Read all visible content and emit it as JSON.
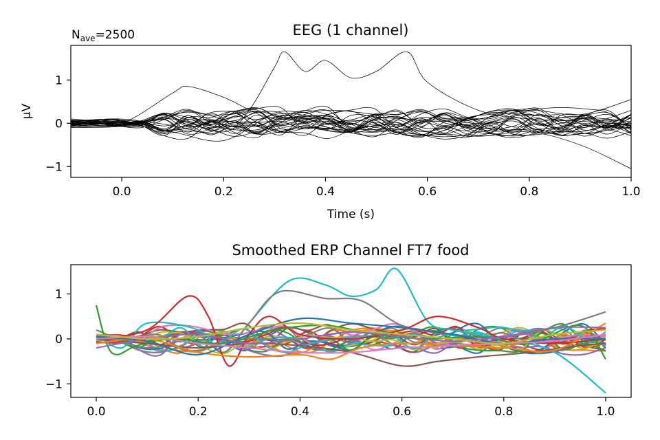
{
  "chart_data": [
    {
      "type": "line",
      "title": "EEG (1 channel)",
      "annotation": {
        "prefix": "N",
        "subscript": "ave",
        "suffix": "=2500"
      },
      "xlabel": "Time (s)",
      "ylabel": "µV",
      "xlim": [
        -0.1,
        1.0
      ],
      "ylim": [
        -1.25,
        1.8
      ],
      "xticks": [
        0.0,
        0.2,
        0.4,
        0.6,
        0.8,
        1.0
      ],
      "xtick_labels": [
        "0.0",
        "0.2",
        "0.4",
        "0.6",
        "0.8",
        "1.0"
      ],
      "yticks": [
        1,
        0,
        -1
      ],
      "ytick_labels": [
        "1",
        "0",
        "−1"
      ],
      "trace_color": "#000000",
      "trace_count": 30,
      "series": [
        {
          "x": [
            -0.1,
            0.0,
            0.1,
            0.2,
            0.25,
            0.3,
            0.32,
            0.36,
            0.4,
            0.45,
            0.5,
            0.56,
            0.6,
            0.7,
            0.8,
            0.9,
            1.0
          ],
          "values": [
            0.05,
            0.0,
            0.1,
            -0.2,
            0.3,
            1.3,
            1.65,
            1.2,
            1.45,
            1.05,
            1.2,
            1.65,
            0.95,
            0.3,
            0.1,
            0.05,
            -0.05
          ]
        },
        {
          "x": [
            -0.1,
            0.0,
            0.1,
            0.13,
            0.2,
            0.3,
            0.4,
            0.5,
            0.6,
            0.7,
            0.8,
            0.9,
            1.0
          ],
          "values": [
            -0.1,
            0.0,
            0.7,
            0.85,
            0.6,
            0.1,
            0.3,
            0.2,
            0.05,
            0.1,
            0.3,
            0.2,
            0.55
          ]
        },
        {
          "x": [
            -0.1,
            0.0,
            0.1,
            0.2,
            0.3,
            0.4,
            0.5,
            0.6,
            0.7,
            0.8,
            0.9,
            1.0
          ],
          "values": [
            0.1,
            0.0,
            -0.2,
            -0.4,
            0.2,
            0.1,
            -0.1,
            -0.2,
            -0.3,
            -0.2,
            -0.5,
            -1.05
          ]
        }
      ]
    },
    {
      "type": "line",
      "title": "Smoothed ERP Channel FT7 food",
      "xlim": [
        -0.05,
        1.05
      ],
      "ylim": [
        -1.3,
        1.65
      ],
      "xticks": [
        0.0,
        0.2,
        0.4,
        0.6,
        0.8,
        1.0
      ],
      "xtick_labels": [
        "0.0",
        "0.2",
        "0.4",
        "0.6",
        "0.8",
        "1.0"
      ],
      "yticks": [
        1,
        0,
        -1
      ],
      "ytick_labels": [
        "1",
        "0",
        "−1"
      ],
      "trace_count": 30,
      "palette": [
        "#1f77b4",
        "#ff7f0e",
        "#2ca02c",
        "#d62728",
        "#9467bd",
        "#8c564b",
        "#e377c2",
        "#7f7f7f",
        "#bcbd22",
        "#17becf"
      ],
      "series": [
        {
          "color": "#17becf",
          "x": [
            0.0,
            0.05,
            0.1,
            0.2,
            0.25,
            0.3,
            0.38,
            0.45,
            0.5,
            0.55,
            0.59,
            0.65,
            0.7,
            0.8,
            0.9,
            1.0
          ],
          "values": [
            0.1,
            -0.2,
            0.35,
            0.2,
            -0.3,
            0.35,
            1.3,
            1.2,
            0.95,
            1.1,
            1.55,
            0.4,
            0.2,
            0.0,
            -0.3,
            -1.2
          ]
        },
        {
          "color": "#7f7f7f",
          "x": [
            0.0,
            0.1,
            0.2,
            0.25,
            0.3,
            0.36,
            0.45,
            0.52,
            0.6,
            0.7,
            0.8,
            0.9,
            1.0
          ],
          "values": [
            0.2,
            -0.2,
            0.05,
            -0.3,
            0.35,
            1.05,
            0.9,
            0.85,
            0.3,
            0.1,
            0.05,
            0.25,
            0.6
          ]
        },
        {
          "color": "#d62728",
          "x": [
            0.0,
            0.1,
            0.18,
            0.22,
            0.26,
            0.3,
            0.34,
            0.4,
            0.5,
            0.6,
            0.67,
            0.75,
            0.8,
            0.9,
            1.0
          ],
          "values": [
            0.0,
            0.2,
            0.95,
            0.5,
            -0.6,
            0.1,
            0.5,
            0.1,
            0.0,
            0.2,
            0.5,
            0.25,
            0.0,
            -0.1,
            0.0
          ]
        },
        {
          "color": "#2ca02c",
          "x": [
            0.0,
            0.02,
            0.04,
            0.08,
            0.15,
            0.25,
            0.35,
            0.45,
            0.55,
            0.65,
            0.75,
            0.85,
            0.95,
            1.0
          ],
          "values": [
            0.75,
            -0.1,
            -0.35,
            -0.15,
            0.0,
            -0.1,
            0.2,
            0.3,
            0.1,
            0.0,
            0.05,
            -0.1,
            0.3,
            -0.45
          ]
        },
        {
          "color": "#8c564b",
          "x": [
            0.0,
            0.1,
            0.2,
            0.3,
            0.4,
            0.5,
            0.6,
            0.67,
            0.75,
            0.85,
            0.95,
            1.0
          ],
          "values": [
            0.0,
            -0.1,
            -0.2,
            -0.1,
            -0.15,
            -0.3,
            -0.6,
            -0.5,
            -0.4,
            -0.3,
            -0.15,
            -0.1
          ]
        },
        {
          "color": "#ff7f0e",
          "x": [
            0.0,
            0.1,
            0.2,
            0.3,
            0.4,
            0.46,
            0.52,
            0.6,
            0.7,
            0.8,
            0.9,
            1.0
          ],
          "values": [
            -0.1,
            0.0,
            -0.3,
            -0.4,
            -0.35,
            -0.45,
            -0.2,
            -0.1,
            -0.15,
            -0.2,
            -0.25,
            0.35
          ]
        },
        {
          "color": "#1f77b4",
          "x": [
            0.0,
            0.1,
            0.2,
            0.3,
            0.4,
            0.5,
            0.6,
            0.7,
            0.8,
            0.9,
            1.0
          ],
          "values": [
            0.05,
            -0.05,
            -0.35,
            0.1,
            0.45,
            0.35,
            0.25,
            0.1,
            -0.1,
            0.0,
            0.0
          ]
        },
        {
          "color": "#9467bd",
          "x": [
            0.0,
            0.1,
            0.2,
            0.3,
            0.4,
            0.5,
            0.6,
            0.7,
            0.8,
            0.9,
            1.0
          ],
          "values": [
            -0.2,
            0.0,
            0.1,
            -0.1,
            0.0,
            0.15,
            0.05,
            -0.05,
            0.05,
            0.25,
            0.25
          ]
        },
        {
          "color": "#e377c2",
          "x": [
            0.0,
            0.1,
            0.2,
            0.3,
            0.4,
            0.5,
            0.6,
            0.7,
            0.8,
            0.9,
            1.0
          ],
          "values": [
            0.0,
            0.05,
            -0.1,
            -0.2,
            -0.3,
            -0.3,
            -0.2,
            -0.15,
            -0.1,
            -0.05,
            0.1
          ]
        },
        {
          "color": "#bcbd22",
          "x": [
            0.0,
            0.1,
            0.2,
            0.3,
            0.4,
            0.5,
            0.6,
            0.7,
            0.8,
            0.9,
            1.0
          ],
          "values": [
            0.1,
            0.0,
            0.05,
            0.25,
            0.35,
            0.2,
            0.1,
            0.0,
            -0.1,
            0.1,
            0.2
          ]
        }
      ]
    }
  ]
}
